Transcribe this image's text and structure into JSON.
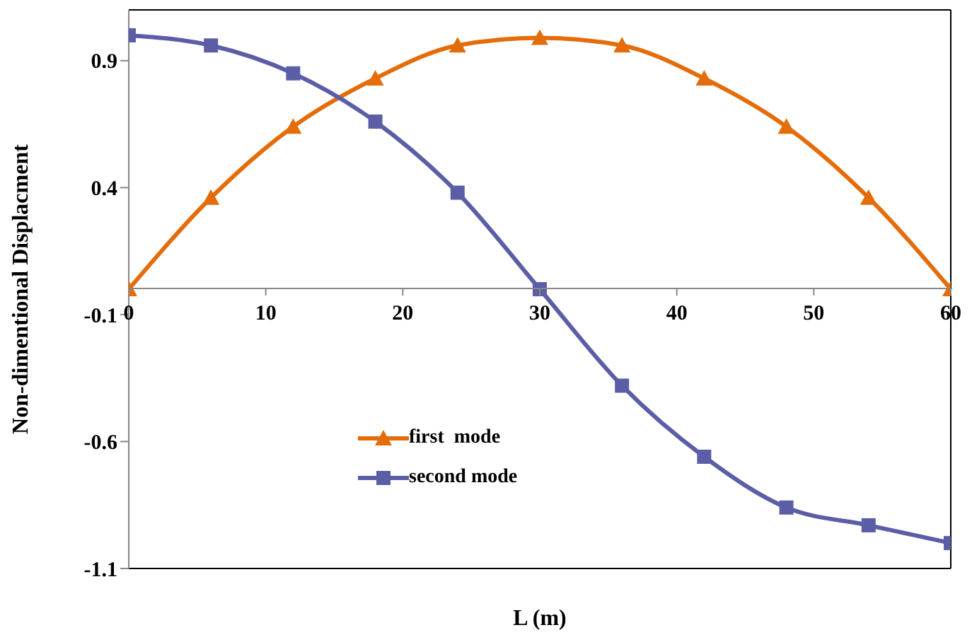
{
  "chart_data": {
    "type": "line",
    "xlabel": "L (m)",
    "ylabel": "Non-dimentional Displacment",
    "x": [
      0,
      6,
      12,
      18,
      24,
      30,
      36,
      42,
      48,
      54,
      60
    ],
    "series": [
      {
        "name": "first  mode",
        "color": "#e46c0a",
        "marker": "triangle",
        "values": [
          0,
          0.36,
          0.64,
          0.83,
          0.96,
          0.99,
          0.96,
          0.83,
          0.64,
          0.36,
          0
        ]
      },
      {
        "name": "second mode",
        "color": "#5b5ea6",
        "marker": "square",
        "values": [
          1.0,
          0.96,
          0.85,
          0.66,
          0.38,
          0.0,
          -0.38,
          -0.66,
          -0.86,
          -0.93,
          -1.0
        ]
      }
    ],
    "xlim": [
      0,
      60
    ],
    "xticks": [
      0,
      10,
      20,
      30,
      40,
      50,
      60
    ],
    "ylim": [
      -1.1,
      1.1
    ],
    "yticks": [
      -1.1,
      -0.6,
      -0.1,
      0.4,
      0.9
    ],
    "grid": false,
    "legend": "bottom left"
  }
}
